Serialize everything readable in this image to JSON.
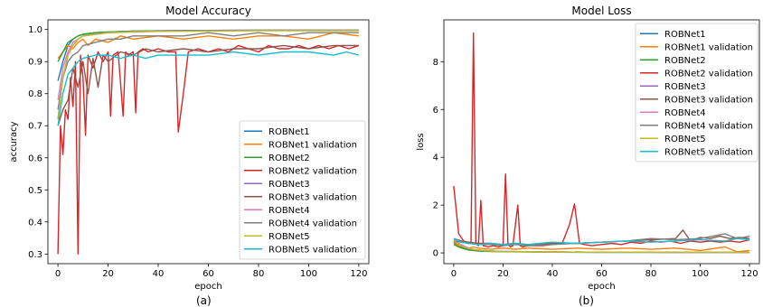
{
  "chart_data": [
    {
      "type": "line",
      "title": "Model Accuracy",
      "xlabel": "epoch",
      "ylabel": "accuracy",
      "xlim": [
        -4,
        124
      ],
      "ylim": [
        0.27,
        1.03
      ],
      "xticks": [
        0,
        20,
        40,
        60,
        80,
        100,
        120
      ],
      "yticks": [
        0.3,
        0.4,
        0.5,
        0.6,
        0.7,
        0.8,
        0.9,
        1.0
      ],
      "ytick_labels": [
        "0.3",
        "0.4",
        "0.5",
        "0.6",
        "0.7",
        "0.8",
        "0.9",
        "1.0"
      ],
      "legend": "lower-right",
      "grid": false,
      "panel_label": "(a)",
      "series": [
        {
          "name": "ROBNet1",
          "color": "#1f77b4",
          "x": [
            0,
            2,
            4,
            6,
            8,
            10,
            15,
            20,
            30,
            40,
            50,
            60,
            80,
            100,
            120
          ],
          "y": [
            0.84,
            0.9,
            0.95,
            0.97,
            0.98,
            0.985,
            0.99,
            0.992,
            0.995,
            0.996,
            0.997,
            0.997,
            0.998,
            0.998,
            0.998
          ]
        },
        {
          "name": "ROBNet1 validation",
          "color": "#ff7f0e",
          "x": [
            0,
            2,
            4,
            6,
            8,
            10,
            12,
            15,
            20,
            25,
            30,
            40,
            50,
            60,
            70,
            80,
            90,
            100,
            110,
            120
          ],
          "y": [
            0.91,
            0.93,
            0.95,
            0.94,
            0.96,
            0.97,
            0.95,
            0.97,
            0.96,
            0.98,
            0.97,
            0.98,
            0.97,
            0.98,
            0.97,
            0.98,
            0.98,
            0.97,
            0.99,
            0.98
          ]
        },
        {
          "name": "ROBNet2",
          "color": "#2ca02c",
          "x": [
            0,
            2,
            4,
            6,
            8,
            10,
            15,
            20,
            30,
            40,
            60,
            80,
            100,
            120
          ],
          "y": [
            0.9,
            0.93,
            0.96,
            0.97,
            0.98,
            0.985,
            0.99,
            0.992,
            0.995,
            0.996,
            0.997,
            0.998,
            0.998,
            0.998
          ]
        },
        {
          "name": "ROBNet2 validation",
          "color": "#d62728",
          "x": [
            0,
            1,
            2,
            3,
            4,
            5,
            6,
            7,
            8,
            9,
            10,
            11,
            12,
            14,
            16,
            18,
            20,
            21,
            22,
            24,
            26,
            27,
            28,
            30,
            31,
            32,
            34,
            36,
            40,
            44,
            47,
            48,
            50,
            52,
            56,
            60,
            64,
            68,
            72,
            76,
            80,
            84,
            88,
            92,
            96,
            100,
            104,
            108,
            112,
            116,
            120
          ],
          "y": [
            0.3,
            0.7,
            0.61,
            0.75,
            0.72,
            0.85,
            0.76,
            0.9,
            0.3,
            0.92,
            0.85,
            0.67,
            0.92,
            0.88,
            0.93,
            0.9,
            0.93,
            0.73,
            0.92,
            0.93,
            0.73,
            0.93,
            0.92,
            0.93,
            0.74,
            0.93,
            0.94,
            0.93,
            0.94,
            0.93,
            0.93,
            0.68,
            0.8,
            0.93,
            0.94,
            0.93,
            0.94,
            0.93,
            0.95,
            0.94,
            0.93,
            0.95,
            0.94,
            0.94,
            0.95,
            0.94,
            0.95,
            0.94,
            0.95,
            0.94,
            0.95
          ]
        },
        {
          "name": "ROBNet3",
          "color": "#9467bd",
          "x": [
            0,
            2,
            4,
            6,
            8,
            10,
            15,
            20,
            30,
            40,
            60,
            80,
            100,
            120
          ],
          "y": [
            0.75,
            0.85,
            0.92,
            0.95,
            0.97,
            0.98,
            0.985,
            0.99,
            0.993,
            0.995,
            0.996,
            0.997,
            0.997,
            0.997
          ]
        },
        {
          "name": "ROBNet3 validation",
          "color": "#8c564b",
          "x": [
            0,
            2,
            4,
            6,
            8,
            10,
            12,
            14,
            16,
            18,
            20,
            25,
            30,
            35,
            40,
            50,
            60,
            70,
            80,
            90,
            100,
            110,
            120
          ],
          "y": [
            0.7,
            0.75,
            0.78,
            0.88,
            0.82,
            0.9,
            0.8,
            0.91,
            0.82,
            0.92,
            0.9,
            0.93,
            0.92,
            0.94,
            0.93,
            0.94,
            0.93,
            0.94,
            0.94,
            0.95,
            0.94,
            0.95,
            0.95
          ]
        },
        {
          "name": "ROBNet4",
          "color": "#e377c2",
          "x": [
            0,
            2,
            4,
            6,
            8,
            10,
            15,
            20,
            30,
            40,
            60,
            80,
            100,
            120
          ],
          "y": [
            0.78,
            0.88,
            0.93,
            0.96,
            0.97,
            0.98,
            0.985,
            0.99,
            0.993,
            0.995,
            0.996,
            0.997,
            0.997,
            0.997
          ]
        },
        {
          "name": "ROBNet4 validation",
          "color": "#7f7f7f",
          "x": [
            0,
            2,
            4,
            6,
            8,
            10,
            15,
            20,
            25,
            30,
            40,
            50,
            60,
            70,
            80,
            90,
            100,
            110,
            120
          ],
          "y": [
            0.72,
            0.85,
            0.9,
            0.92,
            0.93,
            0.95,
            0.96,
            0.97,
            0.97,
            0.98,
            0.98,
            0.98,
            0.99,
            0.98,
            0.99,
            0.98,
            0.99,
            0.99,
            0.99
          ]
        },
        {
          "name": "ROBNet5",
          "color": "#bcbd22",
          "x": [
            0,
            2,
            4,
            6,
            8,
            10,
            15,
            20,
            30,
            40,
            60,
            80,
            100,
            120
          ],
          "y": [
            0.72,
            0.85,
            0.92,
            0.95,
            0.97,
            0.98,
            0.985,
            0.99,
            0.992,
            0.994,
            0.995,
            0.996,
            0.996,
            0.996
          ]
        },
        {
          "name": "ROBNet5 validation",
          "color": "#17becf",
          "x": [
            0,
            2,
            4,
            6,
            8,
            10,
            15,
            20,
            25,
            30,
            35,
            40,
            50,
            60,
            70,
            80,
            90,
            100,
            110,
            115,
            120
          ],
          "y": [
            0.7,
            0.8,
            0.86,
            0.88,
            0.9,
            0.91,
            0.92,
            0.92,
            0.91,
            0.92,
            0.91,
            0.92,
            0.92,
            0.92,
            0.93,
            0.92,
            0.93,
            0.93,
            0.92,
            0.93,
            0.92
          ]
        }
      ]
    },
    {
      "type": "line",
      "title": "Model Loss",
      "xlabel": "epoch",
      "ylabel": "loss",
      "xlim": [
        -4,
        124
      ],
      "ylim": [
        -0.45,
        9.75
      ],
      "xticks": [
        0,
        20,
        40,
        60,
        80,
        100,
        120
      ],
      "yticks": [
        0,
        2,
        4,
        6,
        8
      ],
      "ytick_labels": [
        "0",
        "2",
        "4",
        "6",
        "8"
      ],
      "legend": "top-right",
      "grid": false,
      "panel_label": "(b)",
      "series": [
        {
          "name": "ROBNet1",
          "color": "#1f77b4",
          "x": [
            0,
            2,
            4,
            6,
            8,
            10,
            15,
            20,
            30,
            40,
            60,
            80,
            100,
            120
          ],
          "y": [
            0.45,
            0.3,
            0.2,
            0.15,
            0.12,
            0.1,
            0.08,
            0.06,
            0.05,
            0.04,
            0.03,
            0.03,
            0.02,
            0.02
          ]
        },
        {
          "name": "ROBNet1 validation",
          "color": "#ff7f0e",
          "x": [
            0,
            2,
            4,
            6,
            8,
            10,
            15,
            20,
            25,
            30,
            40,
            50,
            60,
            70,
            80,
            90,
            100,
            110,
            115,
            120
          ],
          "y": [
            0.4,
            0.3,
            0.25,
            0.2,
            0.25,
            0.2,
            0.15,
            0.2,
            0.15,
            0.2,
            0.15,
            0.2,
            0.15,
            0.2,
            0.15,
            0.2,
            0.1,
            0.25,
            0.05,
            0.1
          ]
        },
        {
          "name": "ROBNet2",
          "color": "#2ca02c",
          "x": [
            0,
            2,
            4,
            6,
            8,
            10,
            15,
            20,
            30,
            40,
            60,
            80,
            100,
            120
          ],
          "y": [
            0.35,
            0.25,
            0.18,
            0.12,
            0.1,
            0.08,
            0.06,
            0.05,
            0.04,
            0.03,
            0.02,
            0.02,
            0.02,
            0.02
          ]
        },
        {
          "name": "ROBNet2 validation",
          "color": "#d62728",
          "x": [
            0,
            2,
            4,
            6,
            7,
            8,
            9,
            10,
            11,
            12,
            14,
            16,
            18,
            20,
            21,
            22,
            23,
            24,
            26,
            27,
            28,
            30,
            32,
            36,
            40,
            44,
            47,
            49,
            51,
            53,
            56,
            60,
            64,
            68,
            72,
            76,
            80,
            84,
            88,
            92,
            96,
            100,
            104,
            108,
            112,
            116,
            120
          ],
          "y": [
            2.8,
            0.8,
            0.5,
            0.4,
            0.4,
            9.2,
            0.4,
            0.3,
            2.2,
            0.3,
            0.25,
            0.3,
            0.25,
            0.3,
            3.3,
            0.4,
            0.25,
            0.3,
            2.0,
            0.3,
            0.25,
            0.3,
            0.3,
            0.3,
            0.35,
            0.4,
            1.2,
            2.05,
            0.4,
            0.35,
            0.3,
            0.35,
            0.4,
            0.35,
            0.45,
            0.4,
            0.5,
            0.45,
            0.5,
            0.4,
            0.5,
            0.45,
            0.5,
            0.45,
            0.5,
            0.45,
            0.55
          ]
        },
        {
          "name": "ROBNet3",
          "color": "#9467bd",
          "x": [
            0,
            2,
            4,
            6,
            8,
            10,
            15,
            20,
            30,
            40,
            60,
            80,
            100,
            120
          ],
          "y": [
            0.5,
            0.35,
            0.25,
            0.18,
            0.14,
            0.12,
            0.08,
            0.06,
            0.05,
            0.04,
            0.03,
            0.03,
            0.02,
            0.02
          ]
        },
        {
          "name": "ROBNet3 validation",
          "color": "#8c564b",
          "x": [
            0,
            3,
            6,
            10,
            15,
            20,
            25,
            30,
            40,
            50,
            60,
            70,
            80,
            90,
            93,
            96,
            100,
            104,
            108,
            112,
            116,
            120
          ],
          "y": [
            0.6,
            0.5,
            0.45,
            0.4,
            0.4,
            0.35,
            0.4,
            0.35,
            0.4,
            0.4,
            0.45,
            0.5,
            0.55,
            0.6,
            0.95,
            0.5,
            0.65,
            0.6,
            0.7,
            0.6,
            0.65,
            0.6
          ]
        },
        {
          "name": "ROBNet4",
          "color": "#e377c2",
          "x": [
            0,
            2,
            4,
            6,
            8,
            10,
            15,
            20,
            30,
            40,
            60,
            80,
            100,
            120
          ],
          "y": [
            0.55,
            0.4,
            0.3,
            0.2,
            0.15,
            0.12,
            0.08,
            0.06,
            0.05,
            0.04,
            0.03,
            0.03,
            0.02,
            0.02
          ]
        },
        {
          "name": "ROBNet4 validation",
          "color": "#7f7f7f",
          "x": [
            0,
            3,
            6,
            10,
            15,
            20,
            25,
            30,
            40,
            50,
            60,
            70,
            80,
            90,
            100,
            105,
            110,
            115,
            120
          ],
          "y": [
            0.5,
            0.45,
            0.4,
            0.35,
            0.35,
            0.3,
            0.35,
            0.3,
            0.35,
            0.4,
            0.45,
            0.5,
            0.6,
            0.55,
            0.6,
            0.7,
            0.8,
            0.6,
            0.7
          ]
        },
        {
          "name": "ROBNet5",
          "color": "#bcbd22",
          "x": [
            0,
            2,
            4,
            6,
            8,
            10,
            15,
            20,
            30,
            40,
            60,
            80,
            100,
            120
          ],
          "y": [
            0.5,
            0.35,
            0.25,
            0.18,
            0.14,
            0.12,
            0.08,
            0.06,
            0.05,
            0.04,
            0.03,
            0.03,
            0.02,
            0.02
          ]
        },
        {
          "name": "ROBNet5 validation",
          "color": "#17becf",
          "x": [
            0,
            3,
            6,
            10,
            15,
            20,
            25,
            30,
            35,
            40,
            50,
            60,
            70,
            80,
            90,
            100,
            110,
            115,
            120
          ],
          "y": [
            0.6,
            0.45,
            0.4,
            0.35,
            0.4,
            0.35,
            0.4,
            0.35,
            0.4,
            0.45,
            0.4,
            0.45,
            0.5,
            0.45,
            0.5,
            0.55,
            0.5,
            0.6,
            0.55
          ]
        }
      ]
    }
  ]
}
